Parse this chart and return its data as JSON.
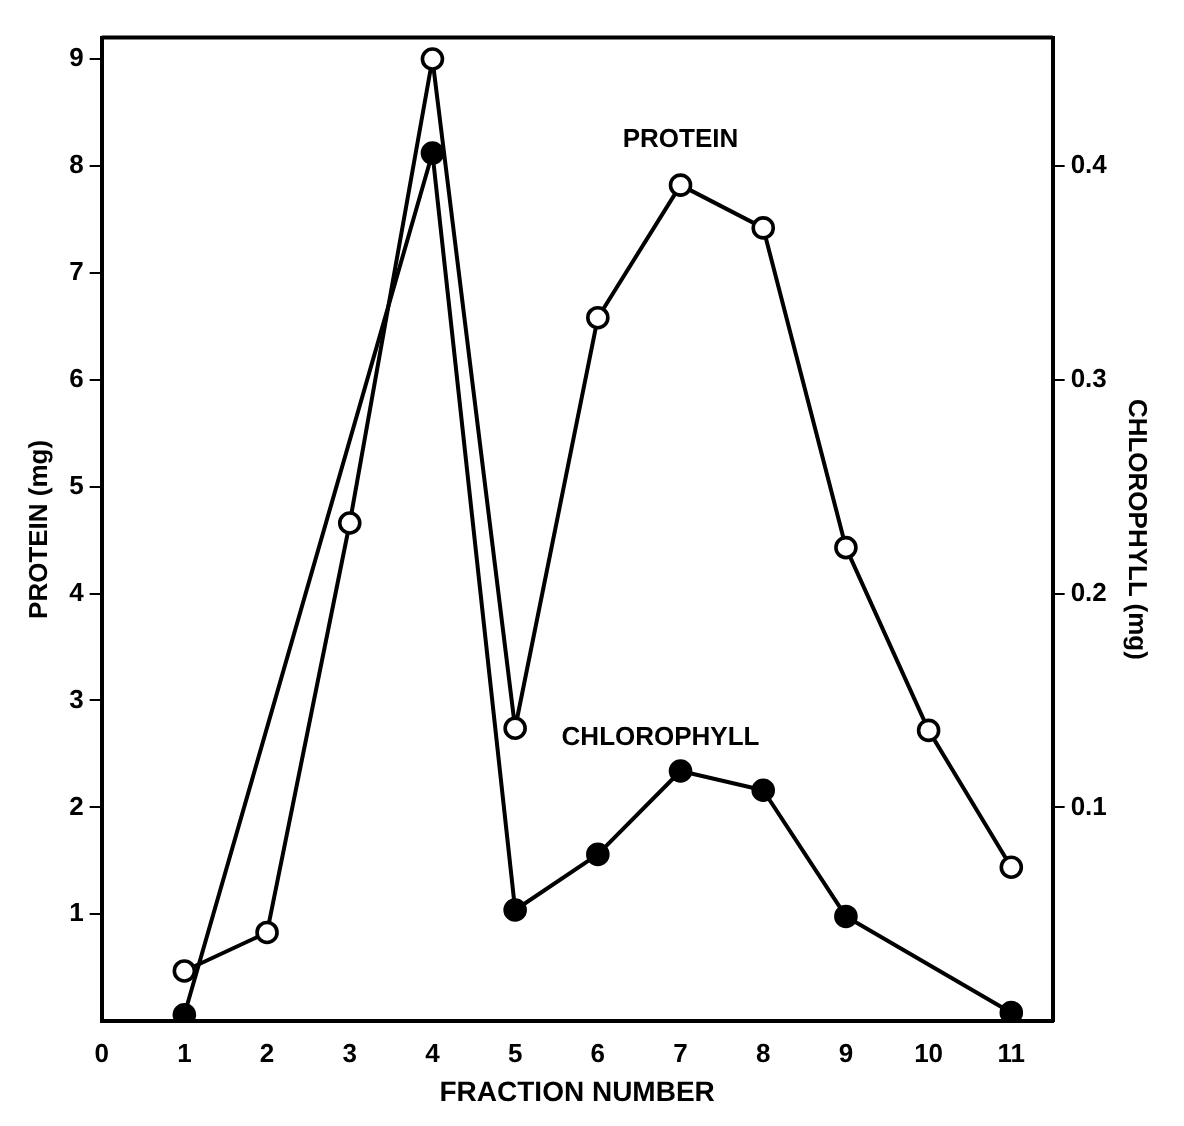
{
  "chart_data": {
    "type": "line",
    "xlabel": "FRACTION NUMBER",
    "ylabel": "PROTEIN (mg)",
    "y2label": "CHLOROPHYLL (mg)",
    "x": [
      1,
      2,
      3,
      4,
      5,
      6,
      7,
      8,
      9,
      10,
      11
    ],
    "series": [
      {
        "name": "PROTEIN",
        "color": "#000000",
        "values": [
          0.47,
          0.83,
          4.66,
          9.0,
          2.74,
          6.58,
          7.82,
          7.42,
          4.43,
          2.72,
          1.44
        ]
      },
      {
        "name": "CHLOROPHYLL",
        "color": "#000000",
        "axis": "y2",
        "values": [
          0.003,
          null,
          null,
          0.406,
          0.052,
          0.078,
          0.117,
          0.108,
          0.049,
          null,
          0.004
        ]
      }
    ],
    "xlim": [
      0,
      11.5
    ],
    "xticks": [
      0,
      1,
      2,
      3,
      4,
      5,
      6,
      7,
      8,
      9,
      10,
      11
    ],
    "ylim": [
      0,
      9.2
    ],
    "yticks": [
      1,
      2,
      3,
      4,
      5,
      6,
      7,
      8,
      9
    ],
    "y2lim": [
      0,
      0.46
    ],
    "y2ticks": [
      0.1,
      0.2,
      0.3,
      0.4
    ],
    "marker": "circle",
    "line_style": "solid",
    "grid": false,
    "legend": false
  }
}
